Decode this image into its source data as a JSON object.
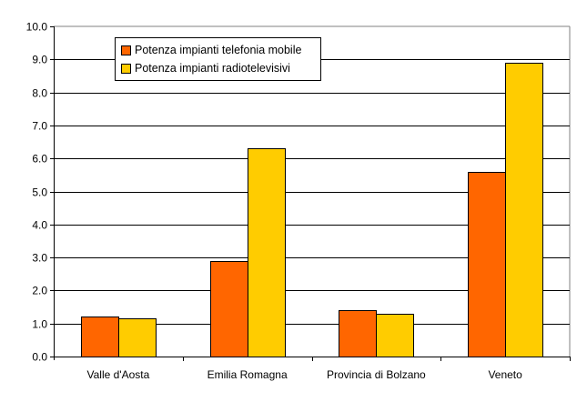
{
  "chart_data": {
    "type": "bar",
    "title": "",
    "xlabel": "",
    "ylabel": "",
    "categories": [
      "Valle d'Aosta",
      "Emilia Romagna",
      "Provincia di Bolzano",
      "Veneto"
    ],
    "series": [
      {
        "name": "Potenza impianti telefonia mobile",
        "color": "#FF6600",
        "values": [
          1.2,
          2.9,
          1.4,
          5.6
        ]
      },
      {
        "name": "Potenza impianti radiotelevisivi",
        "color": "#FFCC00",
        "values": [
          1.15,
          6.3,
          1.3,
          8.9
        ]
      }
    ],
    "ylim": [
      0,
      10
    ],
    "yticks": [
      "0.0",
      "1.0",
      "2.0",
      "3.0",
      "4.0",
      "5.0",
      "6.0",
      "7.0",
      "8.0",
      "9.0",
      "10.0"
    ],
    "grid": true,
    "legend_position": "top-left inside"
  },
  "legend": {
    "items": [
      {
        "label": "Potenza impianti telefonia mobile",
        "color": "#FF6600"
      },
      {
        "label": "Potenza impianti radiotelevisivi",
        "color": "#FFCC00"
      }
    ]
  }
}
